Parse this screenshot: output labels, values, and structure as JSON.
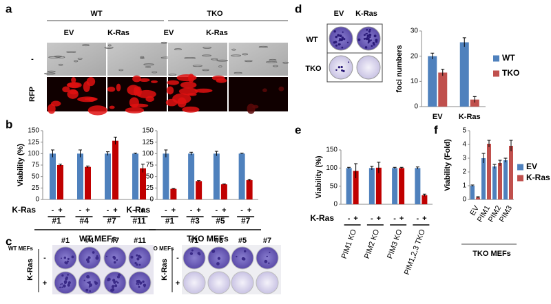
{
  "panel_labels": [
    "a",
    "b",
    "c",
    "d",
    "e",
    "f"
  ],
  "panel_a": {
    "groups": [
      "WT",
      "TKO"
    ],
    "columns": [
      "EV",
      "K-Ras",
      "EV",
      "K-Ras"
    ],
    "rows": [
      "-",
      "RFP"
    ]
  },
  "panel_c": {
    "row_title": "K-Ras",
    "rows": [
      "-",
      "+"
    ],
    "wt": {
      "label": "WT MEFs",
      "clones": [
        "#1",
        "#4",
        "#7",
        "#11"
      ]
    },
    "tko": {
      "label": "TKO MEFs",
      "clones": [
        "#1",
        "#3",
        "#5",
        "#7"
      ]
    }
  },
  "panel_d_plates": {
    "columns": [
      "EV",
      "K-Ras"
    ],
    "rows": [
      "WT",
      "TKO"
    ]
  },
  "chart_data": [
    {
      "type": "bar",
      "ylabel": "Viability (%)",
      "categories": [
        "#1",
        "#4",
        "#7",
        "#11"
      ],
      "series": [
        {
          "color": "#4f81bd",
          "values": [
            100,
            100,
            100,
            100
          ],
          "errors": [
            8,
            8,
            4,
            1
          ]
        },
        {
          "color": "#c00000",
          "values": [
            75,
            71,
            128,
            68
          ],
          "errors": [
            2,
            2,
            8,
            9
          ]
        }
      ],
      "ylim": [
        0,
        150
      ],
      "yticks": [
        0,
        25,
        50,
        75,
        100,
        125,
        150
      ],
      "bar_labels": [
        "-",
        "+"
      ],
      "row_label": "K-Ras",
      "group_label": "WT MEFs"
    },
    {
      "type": "bar",
      "categories": [
        "#1",
        "#3",
        "#5",
        "#7"
      ],
      "series": [
        {
          "color": "#4f81bd",
          "values": [
            100,
            100,
            100,
            100
          ],
          "errors": [
            8,
            3,
            5,
            1
          ]
        },
        {
          "color": "#c00000",
          "values": [
            23,
            40,
            33,
            42
          ],
          "errors": [
            1,
            1,
            1,
            2
          ]
        }
      ],
      "ylim": [
        0,
        150
      ],
      "yticks": [
        0,
        25,
        50,
        75,
        100,
        125,
        150
      ],
      "bar_labels": [
        "-",
        "+"
      ],
      "row_label": "K-Ras",
      "group_label": "TKO MEFs"
    },
    {
      "type": "bar",
      "ylabel": "foci numbers",
      "categories": [
        "EV",
        "K-Ras"
      ],
      "series": [
        {
          "name": "WT",
          "color": "#4f81bd",
          "values": [
            20,
            25.5
          ],
          "errors": [
            1.2,
            1.8
          ]
        },
        {
          "name": "TKO",
          "color": "#c0504d",
          "values": [
            13.5,
            2.8
          ],
          "errors": [
            1.3,
            1.2
          ]
        }
      ],
      "ylim": [
        0,
        30
      ],
      "yticks": [
        0,
        10,
        20,
        30
      ]
    },
    {
      "type": "bar",
      "ylabel": "Viability (%)",
      "categories": [
        "PIM1 KO",
        "PIM2 KO",
        "PIM3 KO",
        "PIM1,2,3 TKO"
      ],
      "series": [
        {
          "color": "#4f81bd",
          "values": [
            100,
            100,
            100,
            100
          ],
          "errors": [
            2,
            5,
            2,
            3
          ]
        },
        {
          "color": "#c00000",
          "values": [
            92,
            101,
            100,
            25
          ],
          "errors": [
            20,
            15,
            2,
            3
          ]
        }
      ],
      "ylim": [
        0,
        150
      ],
      "yticks": [
        0,
        50,
        100,
        150
      ],
      "bar_labels": [
        "-",
        "+"
      ],
      "row_label": "K-Ras"
    },
    {
      "type": "bar",
      "ylabel": "Viability (Fold)",
      "categories": [
        "EV",
        "PIM1",
        "PIM2",
        "PIM3"
      ],
      "series": [
        {
          "name": "EV",
          "color": "#4f81bd",
          "values": [
            1,
            3,
            2.4,
            2.85
          ],
          "errors": [
            0.05,
            0.35,
            0.15,
            0.15
          ]
        },
        {
          "name": "K-Ras",
          "color": "#c0504d",
          "values": [
            0.15,
            4.05,
            2.65,
            3.9
          ],
          "errors": [
            0.05,
            0.25,
            0.2,
            0.4
          ]
        }
      ],
      "ylim": [
        0,
        5
      ],
      "yticks": [
        0,
        1,
        2,
        3,
        4,
        5
      ],
      "group_label": "TKO MEFs"
    }
  ]
}
